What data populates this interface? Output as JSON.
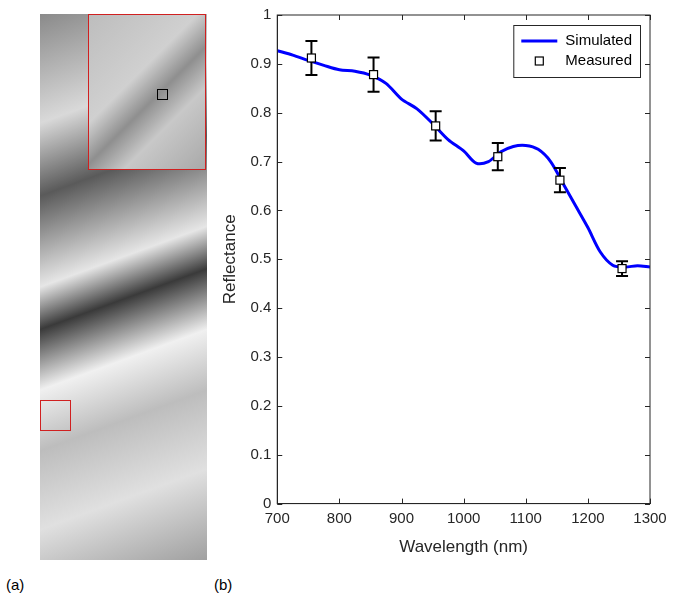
{
  "panel_labels": [
    "(a)",
    "(b)"
  ],
  "chart_data": {
    "type": "line",
    "x_label": "Wavelength (nm)",
    "y_label": "Reflectance",
    "xlim": [
      700,
      1300
    ],
    "xticks": [
      700,
      800,
      900,
      1000,
      1100,
      1200,
      1300
    ],
    "ylim": [
      0,
      1
    ],
    "yticks": [
      0,
      0.1,
      0.2,
      0.3,
      0.4,
      0.5,
      0.6,
      0.7,
      0.8,
      0.9,
      1
    ],
    "grid": false,
    "legend": "upper right",
    "series": [
      {
        "name": "Simulated",
        "type": "line",
        "color": "#0000ff",
        "line_style": "solid",
        "x": [
          700,
          725,
          750,
          775,
          800,
          825,
          850,
          875,
          900,
          925,
          950,
          975,
          1000,
          1020,
          1040,
          1060,
          1080,
          1100,
          1120,
          1140,
          1160,
          1180,
          1200,
          1220,
          1240,
          1260,
          1280,
          1300
        ],
        "values": [
          0.927,
          0.918,
          0.907,
          0.897,
          0.888,
          0.885,
          0.877,
          0.86,
          0.828,
          0.808,
          0.778,
          0.745,
          0.722,
          0.697,
          0.7,
          0.72,
          0.731,
          0.733,
          0.725,
          0.7,
          0.655,
          0.61,
          0.565,
          0.515,
          0.488,
          0.484,
          0.487,
          0.484
        ]
      },
      {
        "name": "Measured",
        "type": "scatter",
        "color": "#000000",
        "marker": "square",
        "x": [
          755,
          855,
          955,
          1055,
          1155,
          1255
        ],
        "values": [
          0.912,
          0.878,
          0.773,
          0.71,
          0.662,
          0.481
        ],
        "errors": [
          0.035,
          0.035,
          0.03,
          0.028,
          0.025,
          0.015
        ]
      }
    ]
  }
}
